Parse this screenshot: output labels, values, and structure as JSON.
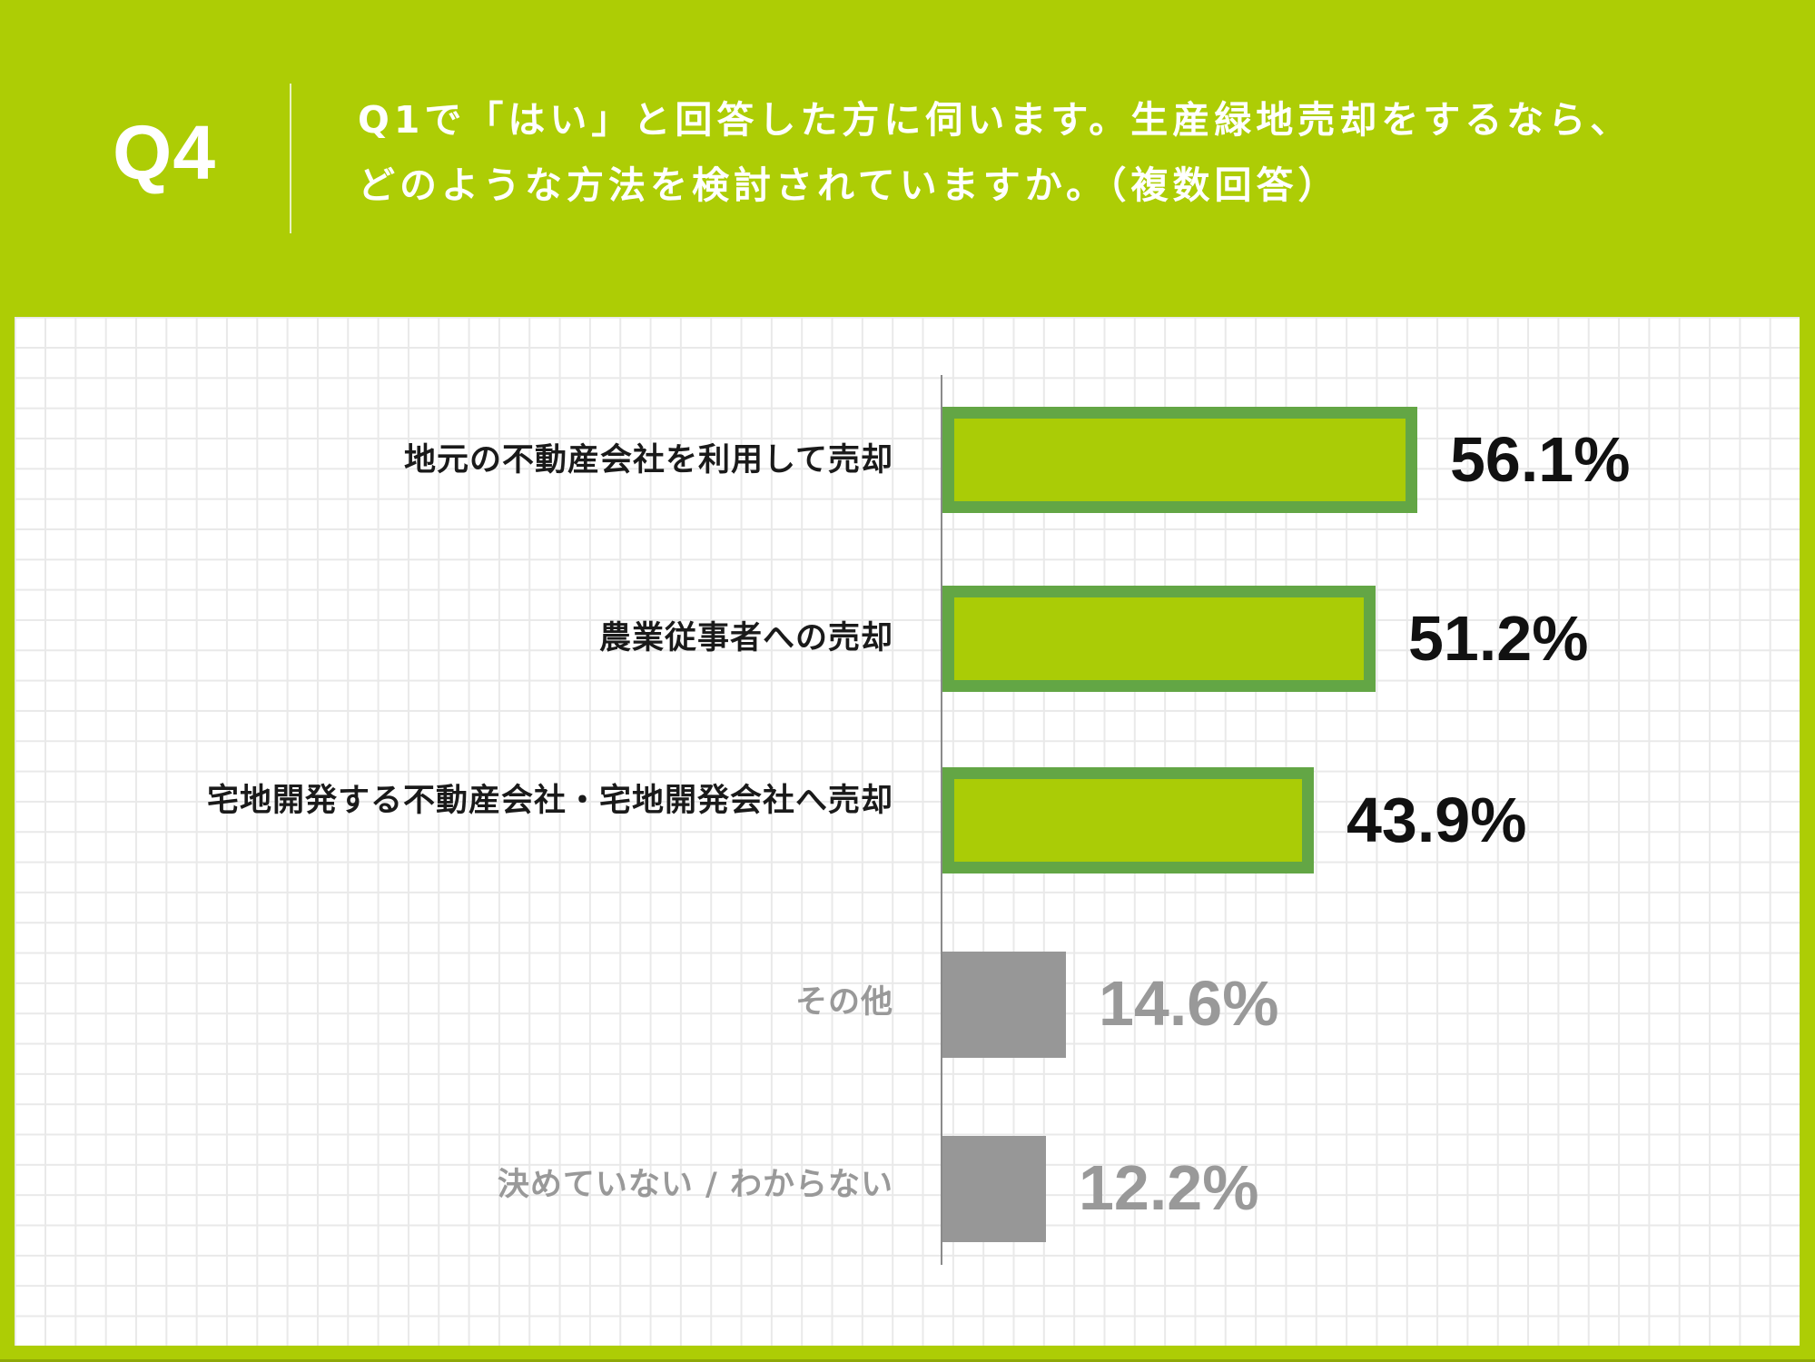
{
  "header": {
    "question_number": "Q4",
    "question_line1": "Q1で「はい」と回答した方に伺います。生産緑地売却をするなら、",
    "question_line2": "どのような方法を検討されていますか。（複数回答）"
  },
  "colors": {
    "background": "#adcd05",
    "bar_fill": "#aacc06",
    "bar_border": "#63a645",
    "bar_muted": "#979797",
    "text_dark": "#111111",
    "text_muted": "#999999"
  },
  "chart_data": {
    "type": "bar",
    "orientation": "horizontal",
    "title": "Q1で「はい」と回答した方に伺います。生産緑地売却をするなら、どのような方法を検討されていますか。（複数回答）",
    "xlabel": "",
    "ylabel": "",
    "unit": "%",
    "grid": true,
    "legend": null,
    "categories": [
      "地元の不動産会社を利用して売却",
      "農業従事者への売却",
      "宅地開発する不動産会社・宅地開発会社へ売却",
      "その他",
      "決めていない / わからない"
    ],
    "values": [
      56.1,
      51.2,
      43.9,
      14.6,
      12.2
    ],
    "value_labels": [
      "56.1%",
      "51.2%",
      "43.9%",
      "14.6%",
      "12.2%"
    ],
    "highlighted": [
      true,
      true,
      true,
      false,
      false
    ]
  }
}
